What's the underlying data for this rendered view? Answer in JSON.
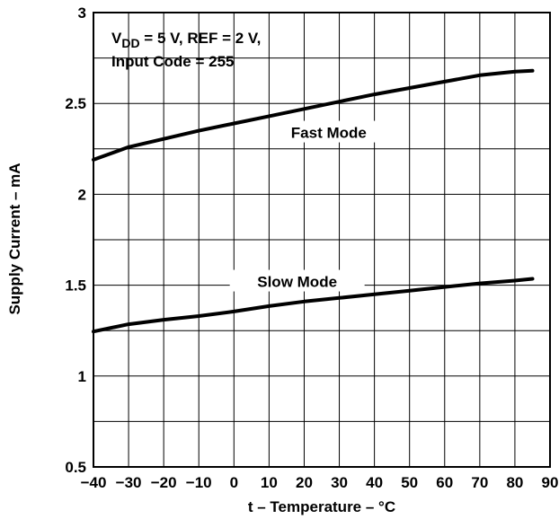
{
  "chart_data": {
    "type": "line",
    "title": "",
    "xlabel": "t – Temperature – °C",
    "ylabel": "Supply Current – mA",
    "xlim": [
      -40,
      90
    ],
    "ylim": [
      0.5,
      3
    ],
    "grid": true,
    "x_ticks": [
      -40,
      -30,
      -20,
      -10,
      0,
      10,
      20,
      30,
      40,
      50,
      60,
      70,
      80,
      90
    ],
    "y_ticks": [
      0.5,
      1,
      1.5,
      2,
      2.5,
      3
    ],
    "x_tick_labels": [
      "−40",
      "−30",
      "−20",
      "−10",
      "0",
      "10",
      "20",
      "30",
      "40",
      "50",
      "60",
      "70",
      "80",
      "90"
    ],
    "y_tick_labels": [
      "0.5",
      "1",
      "1.5",
      "2",
      "2.5",
      "3"
    ],
    "annotation": {
      "line1_prefix": "V",
      "line1_sub": "DD",
      "line1_rest": " = 5 V, REF = 2 V,",
      "line2": "Input Code = 255"
    },
    "series": [
      {
        "name": "Fast Mode",
        "x": [
          -40,
          -30,
          -20,
          -10,
          0,
          10,
          20,
          30,
          40,
          50,
          60,
          70,
          80,
          85
        ],
        "y": [
          2.19,
          2.26,
          2.305,
          2.35,
          2.39,
          2.43,
          2.47,
          2.51,
          2.55,
          2.585,
          2.62,
          2.655,
          2.675,
          2.68
        ]
      },
      {
        "name": "Slow Mode",
        "x": [
          -40,
          -30,
          -20,
          -10,
          0,
          10,
          20,
          30,
          40,
          50,
          60,
          70,
          80,
          85
        ],
        "y": [
          1.245,
          1.285,
          1.31,
          1.33,
          1.355,
          1.385,
          1.41,
          1.43,
          1.45,
          1.47,
          1.49,
          1.51,
          1.525,
          1.535
        ]
      }
    ]
  }
}
